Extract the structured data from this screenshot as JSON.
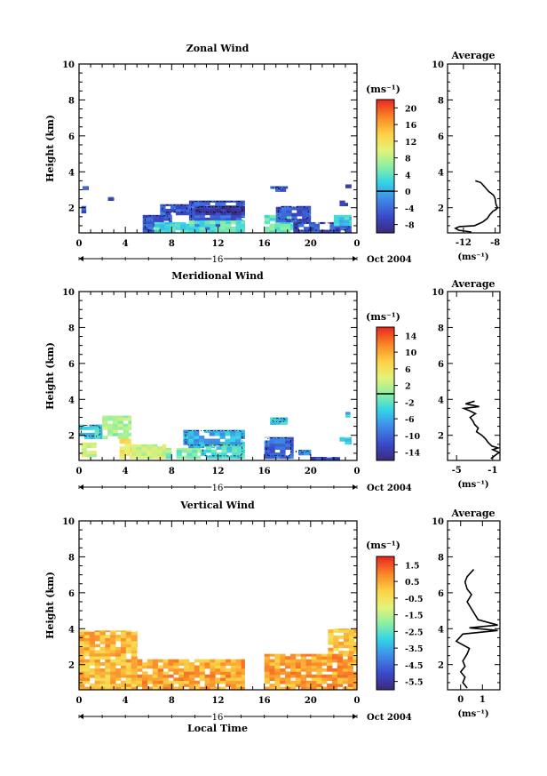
{
  "chart_data": [
    {
      "type": "heatmap",
      "title": "Zonal Wind",
      "ylabel": "Height (km)",
      "xlabel": "",
      "xticks": [
        "0",
        "4",
        "8",
        "12",
        "16",
        "20",
        "0"
      ],
      "yticks": [
        "2",
        "4",
        "6",
        "8",
        "10"
      ],
      "xlim": [
        0,
        24
      ],
      "ylim": [
        0.6,
        10
      ],
      "date_label": "16",
      "month_label": "Oct 2004",
      "colorbar_unit": "(ms⁻¹)",
      "colorbar_ticks": [
        "20",
        "16",
        "12",
        "8",
        "4",
        "0",
        "-4",
        "-8"
      ],
      "colorbar_range": [
        -10,
        22
      ],
      "colorbar_zero_line": 0,
      "contour_level": 0,
      "regions": [
        {
          "x0": 0.2,
          "x1": 0.6,
          "y0": 1.7,
          "y1": 2.1,
          "value": -6
        },
        {
          "x0": 0.3,
          "x1": 0.8,
          "y0": 3.0,
          "y1": 3.2,
          "value": -6
        },
        {
          "x0": 2.5,
          "x1": 3.0,
          "y0": 2.4,
          "y1": 2.6,
          "value": -6
        },
        {
          "x0": 5.5,
          "x1": 8.0,
          "y0": 0.6,
          "y1": 1.6,
          "value": -5
        },
        {
          "x0": 6.5,
          "x1": 9.5,
          "y0": 0.6,
          "y1": 1.2,
          "value": 3
        },
        {
          "x0": 7.0,
          "x1": 9.5,
          "y0": 1.6,
          "y1": 2.2,
          "value": -5
        },
        {
          "x0": 9.5,
          "x1": 14.3,
          "y0": 0.6,
          "y1": 2.4,
          "value": -5
        },
        {
          "x0": 10.0,
          "x1": 14.3,
          "y0": 1.6,
          "y1": 2.1,
          "value": -8
        },
        {
          "x0": 9.5,
          "x1": 14.3,
          "y0": 0.6,
          "y1": 1.3,
          "value": 4
        },
        {
          "x0": 16.0,
          "x1": 18.5,
          "y0": 0.6,
          "y1": 1.6,
          "value": 4
        },
        {
          "x0": 16.5,
          "x1": 18.0,
          "y0": 2.9,
          "y1": 3.2,
          "value": -5
        },
        {
          "x0": 17.0,
          "x1": 20.0,
          "y0": 1.2,
          "y1": 2.1,
          "value": -5
        },
        {
          "x0": 18.5,
          "x1": 23.5,
          "y0": 0.6,
          "y1": 1.2,
          "value": -5
        },
        {
          "x0": 22.0,
          "x1": 23.5,
          "y0": 1.0,
          "y1": 1.6,
          "value": 2
        },
        {
          "x0": 22.5,
          "x1": 23.2,
          "y0": 2.1,
          "y1": 2.4,
          "value": -6
        },
        {
          "x0": 23.0,
          "x1": 23.5,
          "y0": 3.1,
          "y1": 3.3,
          "value": -6
        }
      ],
      "profile": {
        "title": "Average",
        "xticks": [
          "-12",
          "-8"
        ],
        "xtick_values": [
          -12,
          -8
        ],
        "xlim": [
          -14,
          -7.4
        ],
        "xunit": "(ms⁻¹)",
        "x": [
          -10.5,
          -9.8,
          -9.4,
          -9.1,
          -8.8,
          -8.5,
          -8.2,
          -8.0,
          -7.9,
          -7.7,
          -7.9,
          -8.3,
          -8.7,
          -9.0,
          -9.6,
          -10.6,
          -12.5,
          -13.0,
          -12.6,
          -11.0
        ],
        "y": [
          3.5,
          3.4,
          3.2,
          3.05,
          2.9,
          2.8,
          2.7,
          2.5,
          2.2,
          2.0,
          1.9,
          1.8,
          1.6,
          1.4,
          1.2,
          1.0,
          0.95,
          0.85,
          0.75,
          0.65
        ]
      }
    },
    {
      "type": "heatmap",
      "title": "Meridional Wind",
      "ylabel": "Height (km)",
      "xlabel": "",
      "xticks": [
        "0",
        "4",
        "8",
        "12",
        "16",
        "20",
        "0"
      ],
      "yticks": [
        "2",
        "4",
        "6",
        "8",
        "10"
      ],
      "xlim": [
        0,
        24
      ],
      "ylim": [
        0.6,
        10
      ],
      "date_label": "16",
      "month_label": "Oct 2004",
      "colorbar_unit": "(ms⁻¹)",
      "colorbar_ticks": [
        "14",
        "10",
        "6",
        "2",
        "-2",
        "-6",
        "-10",
        "-14"
      ],
      "colorbar_range": [
        -16,
        16
      ],
      "colorbar_zero_line": 0,
      "contour_level": 0,
      "regions": [
        {
          "x0": 0.0,
          "x1": 2.0,
          "y0": 1.8,
          "y1": 2.6,
          "value": -4
        },
        {
          "x0": 0.2,
          "x1": 1.5,
          "y0": 0.8,
          "y1": 1.6,
          "value": 3
        },
        {
          "x0": 2.0,
          "x1": 4.5,
          "y0": 1.8,
          "y1": 3.1,
          "value": 1
        },
        {
          "x0": 3.5,
          "x1": 4.5,
          "y0": 0.7,
          "y1": 1.8,
          "value": 6
        },
        {
          "x0": 4.5,
          "x1": 7.5,
          "y0": 0.7,
          "y1": 1.5,
          "value": 3
        },
        {
          "x0": 7.5,
          "x1": 10.5,
          "y0": 0.7,
          "y1": 1.3,
          "value": 0
        },
        {
          "x0": 9.0,
          "x1": 14.3,
          "y0": 1.3,
          "y1": 2.3,
          "value": -6
        },
        {
          "x0": 10.5,
          "x1": 14.3,
          "y0": 0.7,
          "y1": 1.5,
          "value": -3
        },
        {
          "x0": 16.0,
          "x1": 18.5,
          "y0": 0.7,
          "y1": 1.9,
          "value": -10
        },
        {
          "x0": 16.5,
          "x1": 18.0,
          "y0": 2.6,
          "y1": 3.0,
          "value": -4
        },
        {
          "x0": 18.5,
          "x1": 20.0,
          "y0": 0.9,
          "y1": 1.2,
          "value": -8
        },
        {
          "x0": 20.0,
          "x1": 22.5,
          "y0": 0.6,
          "y1": 0.8,
          "value": -12
        },
        {
          "x0": 22.5,
          "x1": 23.5,
          "y0": 1.5,
          "y1": 1.9,
          "value": -3
        },
        {
          "x0": 23.0,
          "x1": 23.4,
          "y0": 3.0,
          "y1": 3.3,
          "value": -5
        }
      ],
      "profile": {
        "title": "Average",
        "xticks": [
          "-5",
          "-1"
        ],
        "xtick_values": [
          -5,
          -1
        ],
        "xlim": [
          -6,
          -0.2
        ],
        "xunit": "(ms⁻¹)",
        "x": [
          -3.0,
          -4.0,
          -2.5,
          -4.2,
          -3.5,
          -2.9,
          -3.5,
          -3.2,
          -3.0,
          -2.6,
          -2.8,
          -2.2,
          -1.8,
          -1.5,
          -1.1,
          -0.4,
          -1.0,
          -0.3,
          -0.8,
          -1.2
        ],
        "y": [
          3.9,
          3.75,
          3.6,
          3.5,
          3.35,
          3.2,
          3.0,
          2.8,
          2.6,
          2.4,
          2.2,
          2.0,
          1.8,
          1.6,
          1.4,
          1.3,
          1.2,
          1.05,
          0.85,
          0.7
        ]
      }
    },
    {
      "type": "heatmap",
      "title": "Vertical Wind",
      "ylabel": "Height (km)",
      "xlabel": "Local Time",
      "xticks": [
        "0",
        "4",
        "8",
        "12",
        "16",
        "20",
        "0"
      ],
      "yticks": [
        "2",
        "4",
        "6",
        "8",
        "10"
      ],
      "xlim": [
        0,
        24
      ],
      "ylim": [
        0.6,
        10
      ],
      "date_label": "16",
      "month_label": "Oct 2004",
      "colorbar_unit": "(ms⁻¹)",
      "colorbar_ticks": [
        "1.5",
        "0.5",
        "-0.5",
        "-1.5",
        "-2.5",
        "-3.5",
        "-4.5",
        "-5.5"
      ],
      "colorbar_range": [
        -6.5,
        2.5
      ],
      "colorbar_zero_line": null,
      "contour_level": null,
      "regions": [
        {
          "x0": 0.0,
          "x1": 5.0,
          "y0": 0.6,
          "y1": 3.9,
          "value": 0.5
        },
        {
          "x0": 5.0,
          "x1": 14.3,
          "y0": 0.6,
          "y1": 2.3,
          "value": 0.8
        },
        {
          "x0": 16.0,
          "x1": 24.0,
          "y0": 0.6,
          "y1": 2.6,
          "value": 0.8
        },
        {
          "x0": 21.5,
          "x1": 24.0,
          "y0": 2.6,
          "y1": 4.0,
          "value": 0.4
        }
      ],
      "profile": {
        "title": "Average",
        "xticks": [
          "0",
          "1"
        ],
        "xtick_values": [
          0,
          1
        ],
        "xlim": [
          -0.6,
          1.8
        ],
        "xunit": "(ms⁻¹)",
        "x": [
          0.6,
          0.3,
          0.2,
          0.3,
          0.5,
          0.3,
          0.8,
          1.7,
          0.4,
          1.7,
          0.1,
          -0.2,
          0.4,
          0.3,
          0.1,
          0.2,
          0.0,
          0.2,
          0.1,
          0.3
        ],
        "y": [
          7.3,
          6.9,
          6.6,
          6.2,
          5.9,
          5.5,
          4.5,
          4.2,
          4.05,
          3.9,
          3.7,
          3.3,
          2.9,
          2.6,
          2.2,
          1.9,
          1.6,
          1.3,
          1.0,
          0.7
        ]
      }
    }
  ]
}
